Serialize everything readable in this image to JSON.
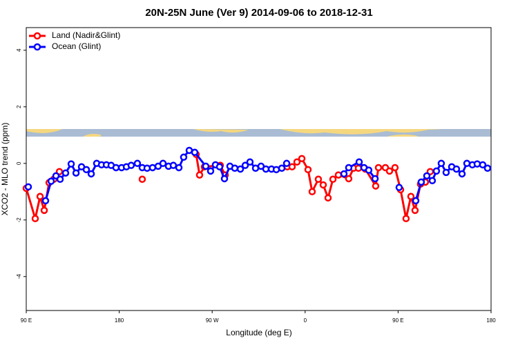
{
  "chart_data": {
    "type": "line",
    "title": "20N-25N June (Ver 9)   2014-09-06 to 2018-12-31",
    "x_label": "Longitude (deg E)",
    "y_label": "XCO2 - MLO trend (ppm)",
    "xlim": [
      90,
      540
    ],
    "ylim": [
      -5.2,
      4.8
    ],
    "xticks": [
      {
        "value": 90,
        "label": "90 E"
      },
      180,
      {
        "value": 270,
        "label": "90 W"
      },
      {
        "value": 360,
        "label": "0"
      },
      {
        "value": 450,
        "label": "90 E"
      },
      {
        "value": 540,
        "label": "180"
      }
    ],
    "yticks": [
      -4,
      -2,
      0,
      2,
      4
    ],
    "legend": "top-left",
    "series": [
      {
        "name": "Land (Nadir&Glint)",
        "color": "#ff0000",
        "x": [
          90.0,
          98.7,
          103.4,
          107.4,
          112.1,
          116.7,
          122.1,
          202.3,
          254.5,
          257.8,
          262.5,
          277.9,
          282.6,
          342.7,
          347.4,
          352.1,
          356.8,
          362.8,
          366.8,
          372.8,
          377.5,
          382.2,
          386.9,
          392.2,
          402.2,
          406.9,
          411.6,
          418.3,
          428.3,
          431.0,
          437.7,
          441.7,
          447.0,
          452.4,
          457.7,
          462.4,
          466.4,
          471.7,
          476.4,
          481.1
        ],
        "values": [
          -0.88,
          -1.95,
          -1.17,
          -1.66,
          -0.68,
          -0.56,
          -0.29,
          -0.56,
          0.32,
          -0.41,
          -0.12,
          -0.07,
          -0.41,
          -0.12,
          -0.12,
          0.05,
          0.17,
          -0.22,
          -1.0,
          -0.56,
          -0.76,
          -1.22,
          -0.56,
          -0.41,
          -0.54,
          -0.17,
          -0.17,
          -0.2,
          -0.8,
          -0.15,
          -0.15,
          -0.27,
          -0.15,
          -0.93,
          -1.95,
          -1.17,
          -1.66,
          -0.73,
          -0.66,
          -0.29
        ]
      },
      {
        "name": "Ocean (Glint)",
        "color": "#0000ff",
        "x": [
          92.0,
          108.7,
          114.1,
          118.8,
          122.8,
          128.1,
          133.5,
          138.2,
          143.5,
          148.2,
          152.9,
          158.2,
          162.9,
          167.6,
          172.2,
          176.9,
          182.3,
          187.0,
          191.6,
          197.6,
          202.3,
          207.0,
          212.3,
          217.7,
          222.4,
          227.7,
          232.4,
          237.8,
          242.4,
          247.8,
          253.1,
          263.8,
          268.5,
          273.2,
          277.2,
          281.9,
          287.2,
          291.9,
          297.3,
          302.0,
          306.6,
          312.0,
          317.3,
          322.0,
          327.4,
          332.1,
          337.4,
          342.1,
          397.6,
          402.2,
          412.3,
          417.0,
          421.6,
          427.7,
          451.0,
          467.1,
          472.4,
          477.8,
          483.1,
          487.1,
          491.8,
          496.5,
          501.9,
          506.5,
          511.9,
          516.6,
          521.9,
          526.6,
          531.9,
          536.6
        ],
        "values": [
          -0.83,
          -1.32,
          -0.63,
          -0.44,
          -0.56,
          -0.34,
          -0.02,
          -0.34,
          -0.12,
          -0.22,
          -0.37,
          0.0,
          -0.05,
          -0.05,
          -0.07,
          -0.15,
          -0.15,
          -0.12,
          -0.07,
          0.0,
          -0.15,
          -0.17,
          -0.15,
          -0.1,
          0.0,
          -0.1,
          -0.07,
          -0.15,
          0.22,
          0.46,
          0.39,
          -0.1,
          -0.27,
          -0.05,
          -0.12,
          -0.54,
          -0.1,
          -0.17,
          -0.2,
          -0.07,
          0.05,
          -0.17,
          -0.1,
          -0.2,
          -0.2,
          -0.22,
          -0.17,
          0.0,
          -0.37,
          -0.15,
          0.05,
          -0.15,
          -0.24,
          -0.54,
          -0.85,
          -1.32,
          -0.66,
          -0.44,
          -0.61,
          -0.27,
          0.0,
          -0.32,
          -0.12,
          -0.2,
          -0.37,
          0.0,
          -0.05,
          -0.02,
          -0.05,
          -0.17
        ]
      }
    ]
  }
}
